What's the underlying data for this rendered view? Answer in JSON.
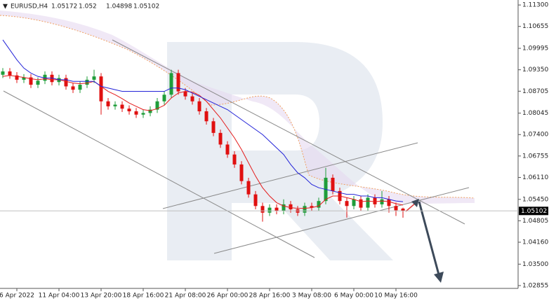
{
  "chart_data": {
    "type": "candlestick",
    "symbol": "EURUSD,H4",
    "categories": [
      null,
      null,
      "6 Apr 2022",
      null,
      null,
      null,
      null,
      null,
      "11 Apr 04:00",
      null,
      null,
      null,
      null,
      null,
      "13 Apr 20:00",
      null,
      null,
      null,
      null,
      null,
      "18 Apr 16:00",
      null,
      null,
      null,
      null,
      null,
      "21 Apr 08:00",
      null,
      null,
      null,
      null,
      null,
      "26 Apr 00:00",
      null,
      null,
      null,
      null,
      null,
      "28 Apr 16:00",
      null,
      null,
      null,
      null,
      null,
      "3 May 08:00",
      null,
      null,
      null,
      null,
      null,
      "6 May 00:00",
      null,
      null,
      null,
      null,
      null,
      "10 May 16:00",
      null
    ],
    "open": [
      1.092,
      1.093,
      1.0918,
      1.0905,
      1.0912,
      1.089,
      1.0902,
      1.092,
      1.0898,
      1.091,
      1.0885,
      1.0875,
      1.089,
      1.0905,
      1.0915,
      1.084,
      1.0825,
      1.083,
      1.0818,
      1.081,
      1.08,
      1.0805,
      1.0815,
      1.084,
      1.086,
      1.0925,
      1.087,
      1.0855,
      1.084,
      1.081,
      1.078,
      1.0745,
      1.071,
      1.068,
      1.065,
      1.06,
      1.056,
      1.0525,
      1.0505,
      1.052,
      1.051,
      1.053,
      1.0515,
      1.0505,
      1.0525,
      1.052,
      1.054,
      1.061,
      1.057,
      1.054,
      1.0525,
      1.0545,
      1.052,
      1.055,
      1.053,
      1.0545,
      1.0525,
      1.05172
    ],
    "high": [
      1.094,
      1.094,
      1.0928,
      1.0922,
      1.0922,
      1.0912,
      1.093,
      1.093,
      1.092,
      1.092,
      1.0895,
      1.09,
      1.0915,
      1.0935,
      1.0925,
      1.085,
      1.084,
      1.084,
      1.0828,
      1.082,
      1.0815,
      1.0825,
      1.085,
      1.087,
      1.0935,
      1.0935,
      1.088,
      1.0865,
      1.085,
      1.082,
      1.079,
      1.0755,
      1.072,
      1.069,
      1.066,
      1.061,
      1.057,
      1.0535,
      1.053,
      1.053,
      1.0545,
      1.054,
      1.0525,
      1.0535,
      1.0535,
      1.055,
      1.064,
      1.062,
      1.058,
      1.055,
      1.0555,
      1.0555,
      1.056,
      1.056,
      1.057,
      1.0555,
      1.0535,
      1.052
    ],
    "low": [
      1.091,
      1.0908,
      1.0895,
      1.0895,
      1.088,
      1.088,
      1.0892,
      1.0888,
      1.0888,
      1.0875,
      1.0865,
      1.0865,
      1.088,
      1.0895,
      1.08,
      1.0815,
      1.0815,
      1.0808,
      1.08,
      1.079,
      1.079,
      1.0795,
      1.0805,
      1.083,
      1.085,
      1.086,
      1.0845,
      1.083,
      1.08,
      1.077,
      1.0735,
      1.07,
      1.067,
      1.064,
      1.059,
      1.055,
      1.0515,
      1.0478,
      1.0495,
      1.05,
      1.05,
      1.0505,
      1.0495,
      1.0495,
      1.051,
      1.051,
      1.053,
      1.056,
      1.053,
      1.049,
      1.0515,
      1.051,
      1.051,
      1.052,
      1.052,
      1.0505,
      1.0495,
      1.04898
    ],
    "close": [
      1.093,
      1.0918,
      1.0905,
      1.0912,
      1.089,
      1.0902,
      1.092,
      1.0898,
      1.091,
      1.0885,
      1.0875,
      1.089,
      1.0905,
      1.0915,
      1.084,
      1.0825,
      1.083,
      1.0818,
      1.081,
      1.08,
      1.0805,
      1.0815,
      1.084,
      1.086,
      1.0925,
      1.087,
      1.0855,
      1.084,
      1.081,
      1.078,
      1.0745,
      1.071,
      1.068,
      1.065,
      1.06,
      1.056,
      1.0525,
      1.0505,
      1.052,
      1.051,
      1.053,
      1.0515,
      1.0505,
      1.0525,
      1.052,
      1.054,
      1.061,
      1.057,
      1.054,
      1.0525,
      1.0545,
      1.052,
      1.055,
      1.053,
      1.0545,
      1.0525,
      1.0512,
      1.05102
    ],
    "up_color": "#1f9d3a",
    "down_color": "#e01010",
    "indicators": [
      {
        "color": "#e41b1b",
        "values": [
          1.0915,
          1.0918,
          1.0915,
          1.0912,
          1.0908,
          1.0905,
          1.0908,
          1.0905,
          1.0905,
          1.09,
          1.0895,
          1.0893,
          1.0895,
          1.09,
          1.0885,
          1.087,
          1.086,
          1.0848,
          1.0835,
          1.0825,
          1.0815,
          1.0812,
          1.0818,
          1.0828,
          1.085,
          1.0865,
          1.087,
          1.0868,
          1.0858,
          1.084,
          1.0815,
          1.079,
          1.076,
          1.073,
          1.0695,
          1.0655,
          1.0615,
          1.058,
          1.0555,
          1.0535,
          1.0525,
          1.052,
          1.0518,
          1.0518,
          1.052,
          1.0525,
          1.0545,
          1.0555,
          1.0555,
          1.055,
          1.0545,
          1.0538,
          1.054,
          1.0538,
          1.054,
          1.0538,
          1.0532,
          1.0528
        ]
      },
      {
        "color": "#2323d8",
        "values": [
          1.1025,
          1.0995,
          1.0965,
          1.094,
          1.0925,
          1.0915,
          1.091,
          1.091,
          1.0905,
          1.0905,
          1.09,
          1.09,
          1.09,
          1.09,
          1.0885,
          1.088,
          1.0875,
          1.087,
          1.087,
          1.087,
          1.087,
          1.087,
          1.087,
          1.087,
          1.088,
          1.088,
          1.0875,
          1.0865,
          1.0855,
          1.0845,
          1.0835,
          1.0825,
          1.0815,
          1.08,
          1.0785,
          1.077,
          1.0755,
          1.074,
          1.072,
          1.07,
          1.068,
          1.065,
          1.0625,
          1.061,
          1.059,
          1.058,
          1.0575,
          1.057,
          1.0565,
          1.056,
          1.056,
          1.0555,
          1.0555,
          1.055,
          1.055,
          1.0545,
          1.054,
          1.0538
        ]
      }
    ],
    "ylim": [
      1.0277,
      1.1145
    ],
    "yticks": [
      {
        "value": 1.113,
        "label": "1.11300"
      },
      {
        "value": 1.10655,
        "label": "1.10655"
      },
      {
        "value": 1.09995,
        "label": "1.09995"
      },
      {
        "value": 1.0935,
        "label": "1.09350"
      },
      {
        "value": 1.08705,
        "label": "1.08705"
      },
      {
        "value": 1.08045,
        "label": "1.08045"
      },
      {
        "value": 1.074,
        "label": "1.07400"
      },
      {
        "value": 1.06755,
        "label": "1.06755"
      },
      {
        "value": 1.0611,
        "label": "1.06110"
      },
      {
        "value": 1.0545,
        "label": "1.05450"
      },
      {
        "value": 1.04805,
        "label": "1.04805"
      },
      {
        "value": 1.0416,
        "label": "1.04160"
      },
      {
        "value": 1.035,
        "label": "1.03500"
      },
      {
        "value": 1.02855,
        "label": "1.02855"
      }
    ],
    "bid": 1.05102
  }
}
